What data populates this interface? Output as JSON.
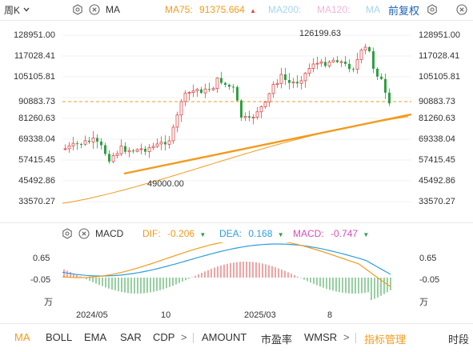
{
  "top": {
    "period": "周K",
    "indicator": "MA",
    "ma75_label": "MA75:",
    "ma75_value": "91375.664",
    "ma200_label": "MA200:",
    "ma120_label": "MA120:",
    "ma_extra_label": "MA",
    "adjust": "前复权",
    "icons": [
      "chevron-down-icon",
      "settings-icon",
      "close-icon",
      "settings-icon",
      "fullscreen-icon"
    ],
    "colors": {
      "ma75": "#f29b1d",
      "ma200": "#a8d4f0",
      "ma120": "#f4b4d8",
      "accent": "#f29b1d"
    }
  },
  "price_axis": {
    "labels": [
      "128951.00",
      "117028.41",
      "105105.81",
      "90883.73",
      "81260.63",
      "69338.04",
      "57415.45",
      "45492.86",
      "33570.27"
    ],
    "current_price": "90883.73",
    "high_label": "126199.63",
    "low_label": "49000.00"
  },
  "macd": {
    "indicator": "MACD",
    "dif_label": "DIF:",
    "dif_value": "-0.206",
    "dea_label": "DEA:",
    "dea_value": "0.168",
    "macd_label": "MACD:",
    "macd_value": "-0.747",
    "axis_labels": [
      "0.65",
      "-0.05",
      "万"
    ],
    "colors": {
      "dif": "#f29b1d",
      "dea": "#2f9de0",
      "macd": "#d64fb4",
      "up": "#e04848",
      "down": "#2ea043"
    }
  },
  "time_axis": [
    "2024/05",
    "10",
    "2025/03",
    "8"
  ],
  "tabs": {
    "items": [
      "MA",
      "BOLL",
      "EMA",
      "SAR",
      "CDP"
    ],
    "more": ">",
    "items2": [
      "AMOUNT",
      "市盈率",
      "WMSR"
    ],
    "more2": ">",
    "manage": "指标管理",
    "time": "时段",
    "active": "MA"
  }
}
